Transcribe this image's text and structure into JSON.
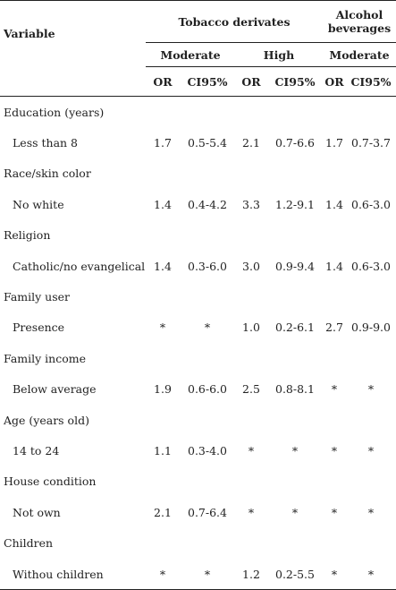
{
  "header": {
    "variable": "Variable",
    "groups": [
      "Tobacco derivates",
      "Alcohol beverages"
    ],
    "subgroups": [
      "Moderate",
      "High",
      "Moderate"
    ],
    "columns": [
      "OR",
      "CI95%",
      "OR",
      "CI95%",
      "OR",
      "CI95%"
    ]
  },
  "rows": [
    {
      "category": "Education (years)",
      "level": "Less than 8",
      "values": [
        "1.7",
        "0.5-5.4",
        "2.1",
        "0.7-6.6",
        "1.7",
        "0.7-3.7"
      ]
    },
    {
      "category": "Race/skin color",
      "level": "No white",
      "values": [
        "1.4",
        "0.4-4.2",
        "3.3",
        "1.2-9.1",
        "1.4",
        "0.6-3.0"
      ]
    },
    {
      "category": "Religion",
      "level": "Catholic/no evangelical",
      "values": [
        "1.4",
        "0.3-6.0",
        "3.0",
        "0.9-9.4",
        "1.4",
        "0.6-3.0"
      ]
    },
    {
      "category": "Family user",
      "level": "Presence",
      "values": [
        "*",
        "*",
        "1.0",
        "0.2-6.1",
        "2.7",
        "0.9-9.0"
      ]
    },
    {
      "category": "Family income",
      "level": "Below average",
      "values": [
        "1.9",
        "0.6-6.0",
        "2.5",
        "0.8-8.1",
        "*",
        "*"
      ]
    },
    {
      "category": "Age (years old)",
      "level": "14 to 24",
      "values": [
        "1.1",
        "0.3-4.0",
        "*",
        "*",
        "*",
        "*"
      ]
    },
    {
      "category": "House condition",
      "level": "Not own",
      "values": [
        "2.1",
        "0.7-6.4",
        "*",
        "*",
        "*",
        "*"
      ]
    },
    {
      "category": "Children",
      "level": "Withou children",
      "values": [
        "*",
        "*",
        "1.2",
        "0.2-5.5",
        "*",
        "*"
      ]
    }
  ]
}
